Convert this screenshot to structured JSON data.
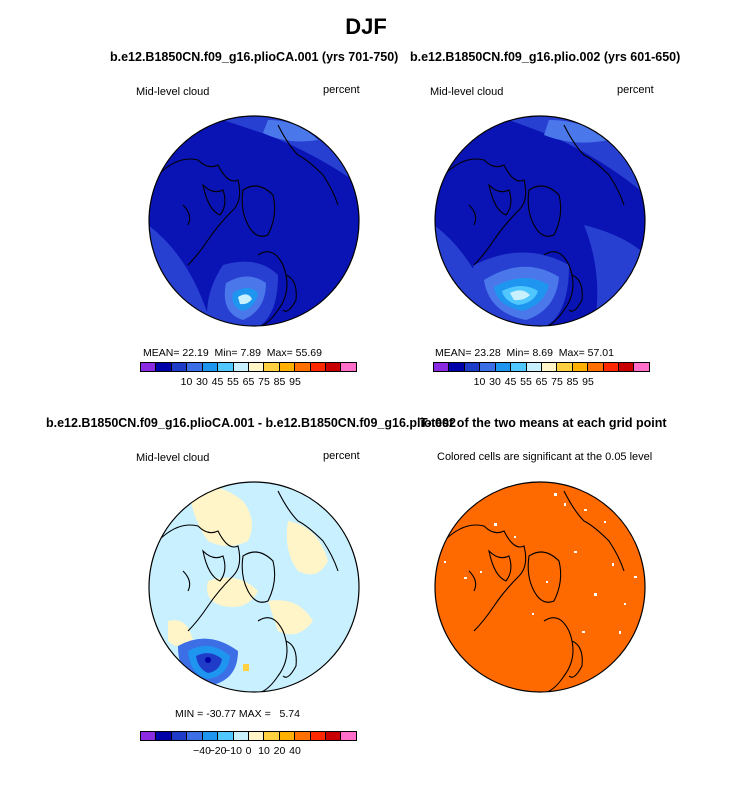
{
  "figure_title": "DJF",
  "chart_data": [
    {
      "type": "heatmap",
      "projection": "north-polar-stereographic",
      "title": "b.e12.B1850CN.f09_g16.plioCA.001 (yrs 701-750)",
      "left_label": "Mid-level cloud",
      "right_label": "percent",
      "stats": {
        "mean_label": "MEAN=",
        "mean": "22.19",
        "min_label": "Min=",
        "min": "7.89",
        "max_label": "Max=",
        "max": "55.69"
      },
      "colorbar": {
        "colors": [
          "#8a2be2",
          "#0000a8",
          "#1e3cc8",
          "#3c6ee6",
          "#1e96f0",
          "#50c8ff",
          "#c8f0ff",
          "#fff5c8",
          "#ffd040",
          "#ffb000",
          "#ff7000",
          "#ff2800",
          "#c80000",
          "#ff6ec8"
        ],
        "tick_labels": [
          "10",
          "30",
          "45",
          "55",
          "65",
          "75",
          "85",
          "95"
        ]
      }
    },
    {
      "type": "heatmap",
      "projection": "north-polar-stereographic",
      "title": "b.e12.B1850CN.f09_g16.plio.002 (yrs 601-650)",
      "left_label": "Mid-level cloud",
      "right_label": "percent",
      "stats": {
        "mean_label": "MEAN=",
        "mean": "23.28",
        "min_label": "Min=",
        "min": "8.69",
        "max_label": "Max=",
        "max": "57.01"
      },
      "colorbar": {
        "colors": [
          "#8a2be2",
          "#0000a8",
          "#1e3cc8",
          "#3c6ee6",
          "#1e96f0",
          "#50c8ff",
          "#c8f0ff",
          "#fff5c8",
          "#ffd040",
          "#ffb000",
          "#ff7000",
          "#ff2800",
          "#c80000",
          "#ff6ec8"
        ],
        "tick_labels": [
          "10",
          "30",
          "45",
          "55",
          "65",
          "75",
          "85",
          "95"
        ]
      }
    },
    {
      "type": "heatmap",
      "projection": "north-polar-stereographic",
      "title": "b.e12.B1850CN.f09_g16.plioCA.001 - b.e12.B1850CN.f09_g16.plio.002",
      "left_label": "Mid-level cloud",
      "right_label": "percent",
      "stats": {
        "min_label": "MIN =",
        "min": "-30.77",
        "max_label": "MAX =",
        "max": "5.74"
      },
      "colorbar": {
        "colors": [
          "#8a2be2",
          "#0000a8",
          "#1e3cc8",
          "#3c6ee6",
          "#1e96f0",
          "#50c8ff",
          "#c8f0ff",
          "#fff5c8",
          "#ffd040",
          "#ffb000",
          "#ff7000",
          "#ff2800",
          "#c80000",
          "#ff6ec8"
        ],
        "tick_labels": [
          "−40",
          "−20",
          "−10",
          "0",
          "10",
          "20",
          "40"
        ]
      }
    },
    {
      "type": "heatmap",
      "projection": "north-polar-stereographic",
      "title": "T-test of the two means at each grid point",
      "left_label": "Colored cells are significant at the 0.05 level",
      "fill_color": "#ff6a00"
    }
  ],
  "colors": {
    "ocean_deep": "#0a14b4",
    "mid_blue": "#2840d2",
    "light_blue": "#4a78ea",
    "diff_bg": "#c8f0ff",
    "diff_yellow": "#fff5c8",
    "ttest_fill": "#ff6a00"
  }
}
